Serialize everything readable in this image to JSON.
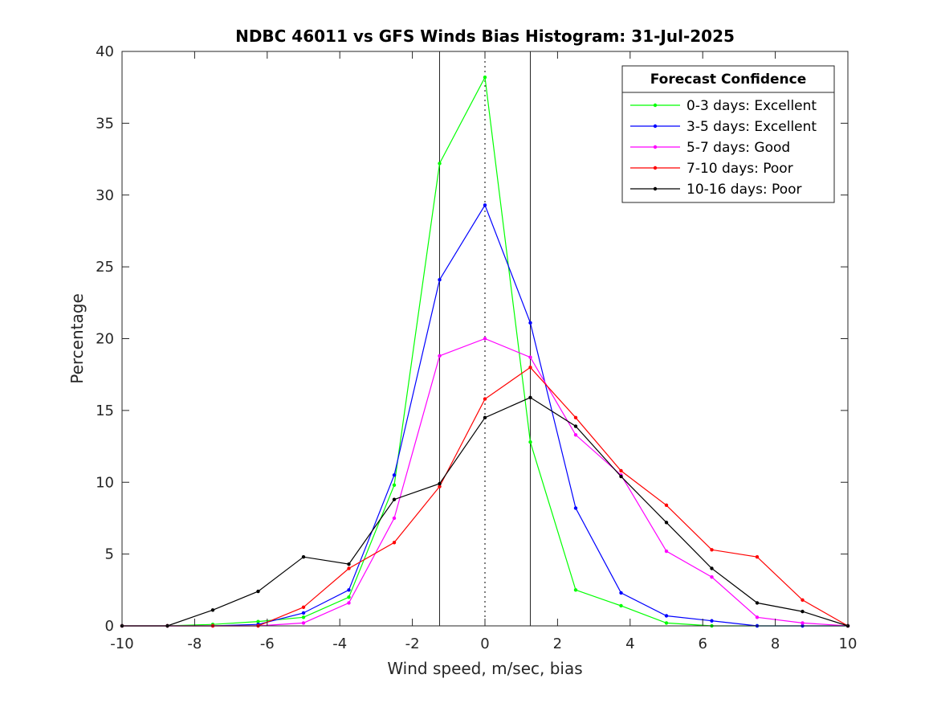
{
  "chart_data": {
    "type": "line",
    "title": "NDBC 46011 vs GFS Winds Bias Histogram: 31-Jul-2025",
    "xlabel": "Wind speed, m/sec, bias",
    "ylabel": "Percentage",
    "xlim": [
      -10,
      10
    ],
    "ylim": [
      0,
      40
    ],
    "xticks": [
      -10,
      -8,
      -6,
      -4,
      -2,
      0,
      2,
      4,
      6,
      8,
      10
    ],
    "yticks": [
      0,
      5,
      10,
      15,
      20,
      25,
      30,
      35,
      40
    ],
    "grid": false,
    "legend_position": "top-right",
    "legend_title": "Forecast Confidence",
    "x": [
      -10,
      -8.75,
      -7.5,
      -6.25,
      -5,
      -3.75,
      -2.5,
      -1.25,
      0,
      1.25,
      2.5,
      3.75,
      5,
      6.25,
      7.5,
      8.75,
      10
    ],
    "series": [
      {
        "name": "0-3 days: Excellent",
        "color": "#00ff00",
        "values": [
          0,
          0,
          0.1,
          0.3,
          0.6,
          2.0,
          9.8,
          32.2,
          38.2,
          12.8,
          2.5,
          1.4,
          0.2,
          0,
          0,
          0,
          0
        ]
      },
      {
        "name": "3-5 days: Excellent",
        "color": "#0000ff",
        "values": [
          0,
          0,
          0,
          0.1,
          0.9,
          2.5,
          10.5,
          24.1,
          29.3,
          21.1,
          8.2,
          2.3,
          0.7,
          0.35,
          0,
          0,
          0
        ]
      },
      {
        "name": "5-7 days: Good",
        "color": "#ff00ff",
        "values": [
          0,
          0,
          0,
          0,
          0.2,
          1.6,
          7.5,
          18.8,
          20.0,
          18.7,
          13.3,
          10.5,
          5.2,
          3.4,
          0.6,
          0.2,
          0
        ]
      },
      {
        "name": "7-10 days: Poor",
        "color": "#ff0000",
        "values": [
          0,
          0,
          0,
          0,
          1.3,
          4.0,
          5.8,
          9.7,
          15.8,
          18.0,
          14.5,
          10.8,
          8.4,
          5.3,
          4.8,
          1.8,
          0
        ]
      },
      {
        "name": "10-16 days: Poor",
        "color": "#000000",
        "values": [
          0,
          0,
          1.1,
          2.4,
          4.8,
          4.3,
          8.8,
          9.9,
          14.5,
          15.9,
          13.9,
          10.4,
          7.2,
          4.0,
          1.6,
          1.0,
          0
        ]
      }
    ],
    "reference_lines": {
      "solid_x": [
        -1.25,
        1.25
      ],
      "dotted_x": [
        0
      ]
    }
  }
}
